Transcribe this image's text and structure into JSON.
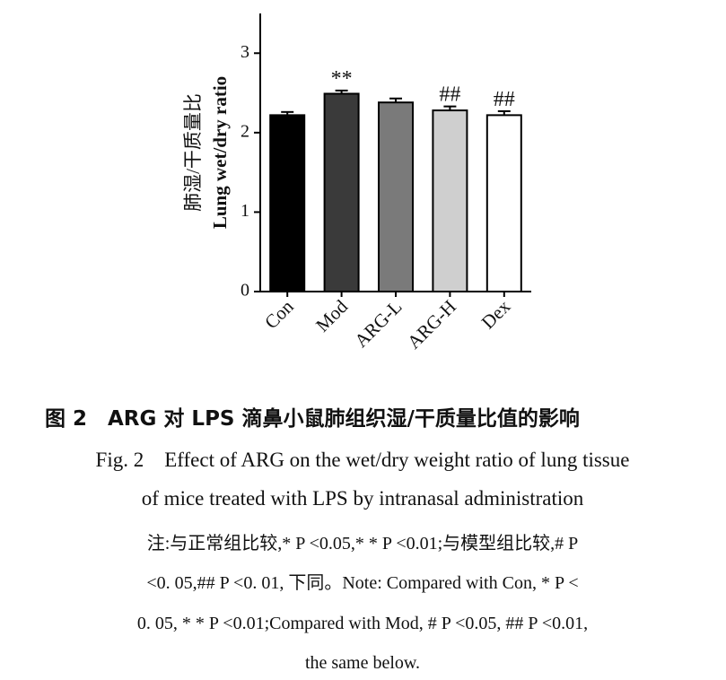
{
  "chart_data": {
    "type": "bar",
    "ylabel": [
      "肺湿/干质量比",
      "Lung wet/dry ratio"
    ],
    "categories": [
      "Con",
      "Mod",
      "ARG-L",
      "ARG-H",
      "Dex"
    ],
    "values": [
      2.22,
      2.49,
      2.38,
      2.28,
      2.22
    ],
    "errors": [
      0.04,
      0.04,
      0.05,
      0.05,
      0.05
    ],
    "colors": [
      "#000000",
      "#3a3a3a",
      "#7a7a7a",
      "#cfcfcf",
      "#ffffff"
    ],
    "significance": [
      null,
      "**",
      null,
      "##",
      "##"
    ],
    "ylim": [
      0,
      3.5
    ],
    "yticks": [
      0,
      1,
      2,
      3
    ]
  },
  "caption": {
    "title_cn": "图 2　ARG 对 LPS 滴鼻小鼠肺组织湿/干质量比值的影响",
    "title_en": [
      "Fig. 2　Effect of ARG on the wet/dry weight ratio of lung tissue",
      "of mice treated with LPS by intranasal administration"
    ],
    "note": [
      "注:与正常组比较,* P <0.05,* * P <0.01;与模型组比较,# P",
      "<0. 05,## P <0. 01, 下同。Note: Compared with Con, * P <",
      "0. 05, * * P <0.01;Compared with Mod, # P <0.05, ## P <0.01,",
      "the same below."
    ]
  }
}
